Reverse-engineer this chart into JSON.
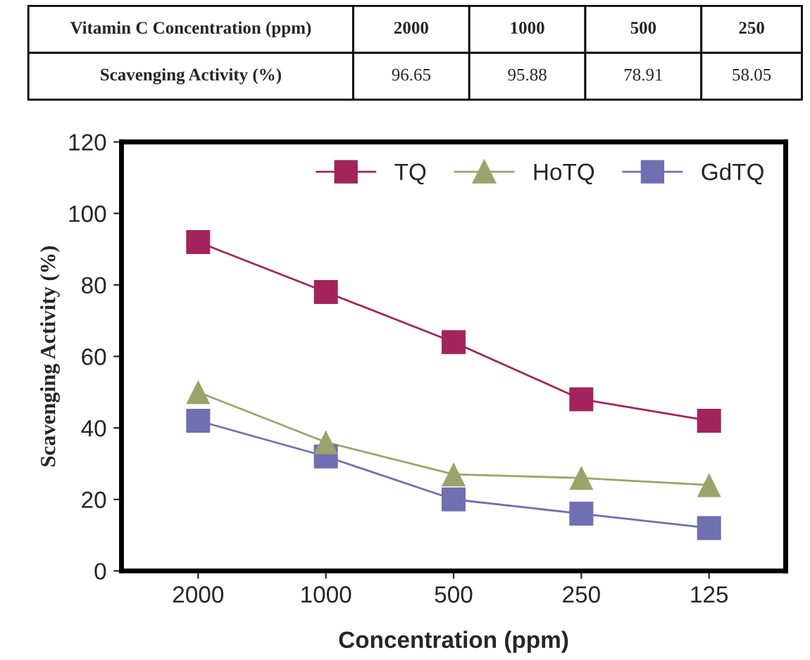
{
  "chart_data": {
    "type": "line",
    "xlabel": "Concentration (ppm)",
    "ylabel": "Scavenging Activity (%)",
    "categories": [
      "2000",
      "1000",
      "500",
      "250",
      "125"
    ],
    "series": [
      {
        "name": "TQ",
        "color": "#a3245c",
        "marker": "square",
        "values": [
          92,
          78,
          64,
          48,
          42
        ]
      },
      {
        "name": "HoTQ",
        "color": "#9aa46a",
        "marker": "triangle",
        "values": [
          50,
          36,
          27,
          26,
          24
        ]
      },
      {
        "name": "GdTQ",
        "color": "#6f6fb2",
        "marker": "square",
        "values": [
          42,
          32,
          20,
          16,
          12
        ]
      }
    ],
    "ylim": [
      0,
      120
    ],
    "yticks": [
      0,
      20,
      40,
      60,
      80,
      100,
      120
    ],
    "grid": false,
    "legend": "top right",
    "annotations": [
      "Vitamin C Concentration (ppm)",
      "2000",
      "1000",
      "500",
      "250",
      "Scavenging Activity (%)",
      "96.65",
      "95.88",
      "78.91",
      "58.05"
    ]
  }
}
